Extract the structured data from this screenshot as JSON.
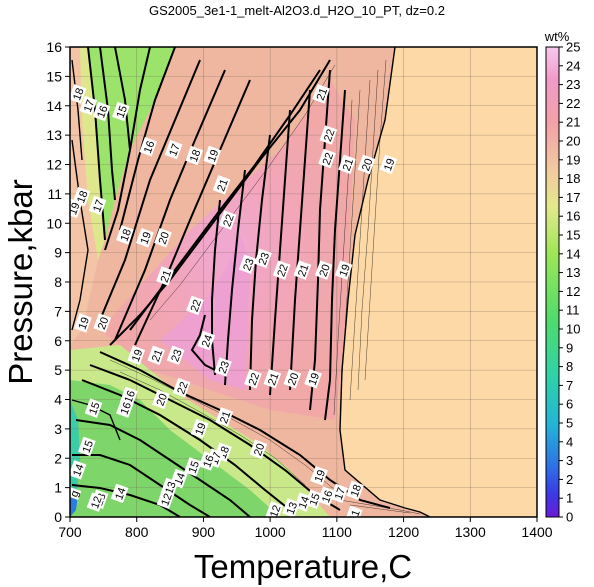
{
  "chart_data": {
    "type": "contour",
    "title": "GS2005_3e1-1_melt-Al2O3.d_H2O_10_PT, dz=0.2",
    "xlabel": "Temperature,C",
    "ylabel": "Pressure,kbar",
    "xlim": [
      700,
      1400
    ],
    "ylim": [
      0,
      16
    ],
    "x_ticks": [
      "700",
      "800",
      "900",
      "1000",
      "1100",
      "1200",
      "1300",
      "1400"
    ],
    "y_ticks": [
      "0",
      "1",
      "2",
      "3",
      "4",
      "5",
      "6",
      "7",
      "8",
      "9",
      "10",
      "11",
      "12",
      "13",
      "14",
      "15",
      "16"
    ],
    "grid": true,
    "colorbar": {
      "label": "wt%",
      "range": [
        0,
        25
      ],
      "ticks": [
        "0",
        "1",
        "2",
        "3",
        "4",
        "5",
        "6",
        "7",
        "8",
        "9",
        "10",
        "11",
        "12",
        "13",
        "14",
        "15",
        "16",
        "17",
        "18",
        "19",
        "20",
        "21",
        "22",
        "23",
        "24",
        "25"
      ]
    },
    "peak": {
      "label": "24",
      "temperature": 905,
      "pressure": 6.0
    },
    "contour_labels": [
      {
        "text": "18",
        "x": 712,
        "y": 14.4
      },
      {
        "text": "17",
        "x": 728,
        "y": 14.0
      },
      {
        "text": "16",
        "x": 748,
        "y": 13.8
      },
      {
        "text": "15",
        "x": 777,
        "y": 13.8
      },
      {
        "text": "16",
        "x": 818,
        "y": 12.6
      },
      {
        "text": "17",
        "x": 856,
        "y": 12.5
      },
      {
        "text": "18",
        "x": 887,
        "y": 12.3
      },
      {
        "text": "19",
        "x": 914,
        "y": 12.3
      },
      {
        "text": "21",
        "x": 1077,
        "y": 14.4
      },
      {
        "text": "22",
        "x": 1088,
        "y": 13.0
      },
      {
        "text": "22",
        "x": 1086,
        "y": 12.2
      },
      {
        "text": "21",
        "x": 1116,
        "y": 12.0
      },
      {
        "text": "20",
        "x": 1145,
        "y": 12.0
      },
      {
        "text": "19",
        "x": 1178,
        "y": 12.0
      },
      {
        "text": "18",
        "x": 718,
        "y": 10.9
      },
      {
        "text": "17",
        "x": 742,
        "y": 10.6
      },
      {
        "text": "19",
        "x": 706,
        "y": 10.5
      },
      {
        "text": "21",
        "x": 928,
        "y": 11.3
      },
      {
        "text": "22",
        "x": 937,
        "y": 10.1
      },
      {
        "text": "18",
        "x": 783,
        "y": 9.6
      },
      {
        "text": "19",
        "x": 813,
        "y": 9.5
      },
      {
        "text": "20",
        "x": 840,
        "y": 9.5
      },
      {
        "text": "23",
        "x": 967,
        "y": 8.6
      },
      {
        "text": "23",
        "x": 990,
        "y": 8.8
      },
      {
        "text": "22",
        "x": 1018,
        "y": 8.4
      },
      {
        "text": "21",
        "x": 1049,
        "y": 8.4
      },
      {
        "text": "20",
        "x": 1081,
        "y": 8.4
      },
      {
        "text": "19",
        "x": 1111,
        "y": 8.4
      },
      {
        "text": "21",
        "x": 843,
        "y": 8.2
      },
      {
        "text": "22",
        "x": 888,
        "y": 7.2
      },
      {
        "text": "19",
        "x": 720,
        "y": 6.6
      },
      {
        "text": "20",
        "x": 749,
        "y": 6.6
      },
      {
        "text": "24",
        "x": 905,
        "y": 6.0
      },
      {
        "text": "19",
        "x": 800,
        "y": 5.5
      },
      {
        "text": "21",
        "x": 830,
        "y": 5.5
      },
      {
        "text": "23",
        "x": 859,
        "y": 5.5
      },
      {
        "text": "23",
        "x": 930,
        "y": 5.1
      },
      {
        "text": "22",
        "x": 975,
        "y": 4.7
      },
      {
        "text": "21",
        "x": 1004,
        "y": 4.7
      },
      {
        "text": "20",
        "x": 1034,
        "y": 4.7
      },
      {
        "text": "19",
        "x": 1065,
        "y": 4.7
      },
      {
        "text": "22",
        "x": 868,
        "y": 4.4
      },
      {
        "text": "16",
        "x": 789,
        "y": 4.1
      },
      {
        "text": "16",
        "x": 783,
        "y": 3.7
      },
      {
        "text": "20",
        "x": 837,
        "y": 4.0
      },
      {
        "text": "15",
        "x": 736,
        "y": 3.7
      },
      {
        "text": "21",
        "x": 932,
        "y": 3.4
      },
      {
        "text": "19",
        "x": 895,
        "y": 3.0
      },
      {
        "text": "20",
        "x": 983,
        "y": 2.3
      },
      {
        "text": "15",
        "x": 726,
        "y": 2.4
      },
      {
        "text": "18",
        "x": 930,
        "y": 2.2
      },
      {
        "text": "17",
        "x": 918,
        "y": 2.0
      },
      {
        "text": "16",
        "x": 907,
        "y": 1.9
      },
      {
        "text": "15",
        "x": 885,
        "y": 1.7
      },
      {
        "text": "14",
        "x": 864,
        "y": 1.3
      },
      {
        "text": "19",
        "x": 1074,
        "y": 1.4
      },
      {
        "text": "14",
        "x": 712,
        "y": 1.6
      },
      {
        "text": "13",
        "x": 850,
        "y": 1.0
      },
      {
        "text": "12",
        "x": 844,
        "y": 0.6
      },
      {
        "text": "14",
        "x": 775,
        "y": 0.8
      },
      {
        "text": "18",
        "x": 1128,
        "y": 0.9
      },
      {
        "text": "17",
        "x": 1104,
        "y": 0.8
      },
      {
        "text": "16",
        "x": 1085,
        "y": 0.7
      },
      {
        "text": "15",
        "x": 1066,
        "y": 0.6
      },
      {
        "text": "14",
        "x": 1050,
        "y": 0.5
      },
      {
        "text": "13",
        "x": 1032,
        "y": 0.3
      },
      {
        "text": "12",
        "x": 1007,
        "y": 0.2
      },
      {
        "text": "11",
        "x": 1126,
        "y": 0.05
      },
      {
        "text": "13",
        "x": 745,
        "y": 0.6
      },
      {
        "text": "12",
        "x": 739,
        "y": 0.5
      },
      {
        "text": "g",
        "x": 706,
        "y": 0.8
      }
    ]
  }
}
